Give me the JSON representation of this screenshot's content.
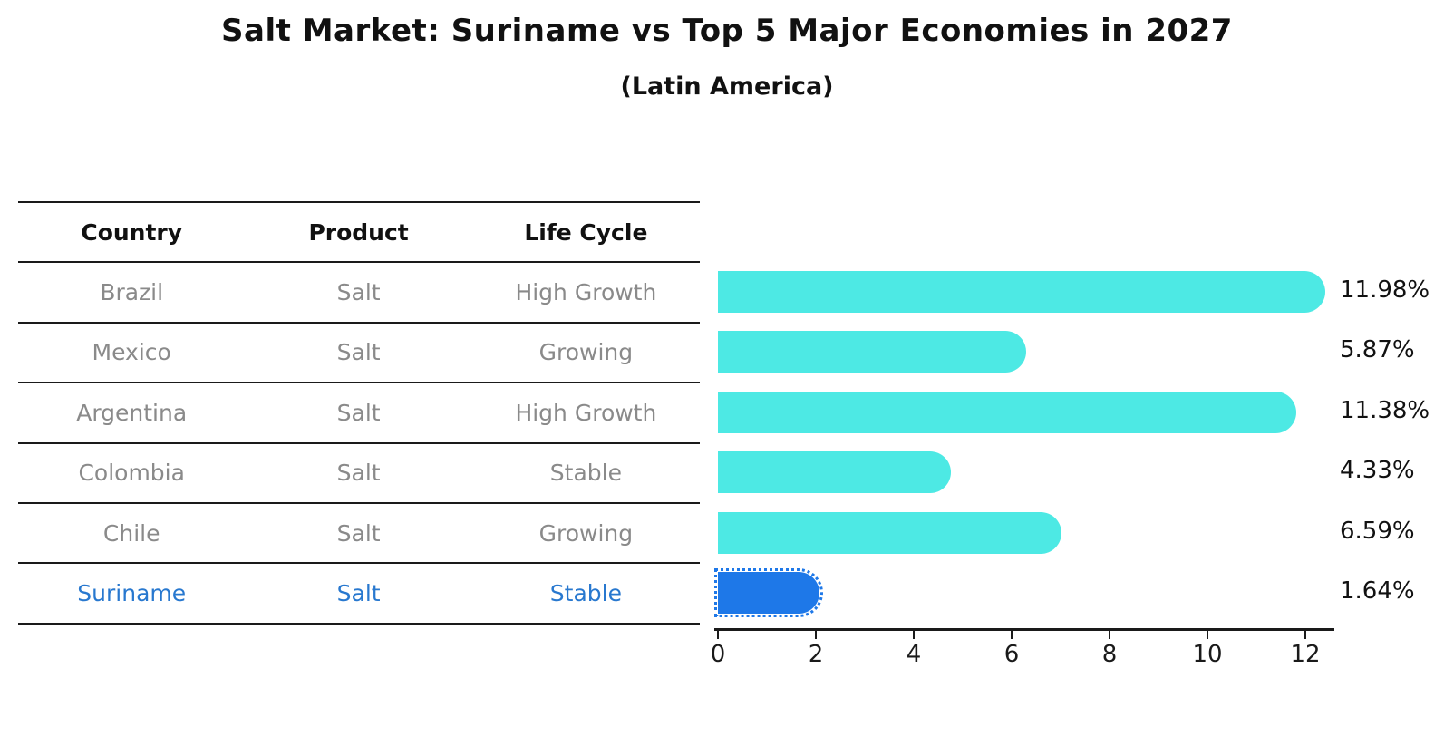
{
  "title": "Salt Market: Suriname vs Top 5 Major Economies in 2027",
  "subtitle": "(Latin America)",
  "table": {
    "headers": [
      "Country",
      "Product",
      "Life Cycle"
    ],
    "rows": [
      {
        "country": "Brazil",
        "product": "Salt",
        "life_cycle": "High Growth",
        "highlight": false
      },
      {
        "country": "Mexico",
        "product": "Salt",
        "life_cycle": "Growing",
        "highlight": false
      },
      {
        "country": "Argentina",
        "product": "Salt",
        "life_cycle": "High Growth",
        "highlight": false
      },
      {
        "country": "Colombia",
        "product": "Salt",
        "life_cycle": "Stable",
        "highlight": false
      },
      {
        "country": "Chile",
        "product": "Salt",
        "life_cycle": "Growing",
        "highlight": false
      },
      {
        "country": "Suriname",
        "product": "Salt",
        "life_cycle": "Stable",
        "highlight": true
      }
    ]
  },
  "chart_data": {
    "type": "bar",
    "orientation": "horizontal",
    "title": "Salt Market: Suriname vs Top 5 Major Economies in 2027",
    "subtitle": "(Latin America)",
    "categories": [
      "Brazil",
      "Mexico",
      "Argentina",
      "Colombia",
      "Chile",
      "Suriname"
    ],
    "values": [
      11.98,
      5.87,
      11.38,
      4.33,
      6.59,
      1.64
    ],
    "value_labels": [
      "11.98%",
      "5.87%",
      "11.38%",
      "4.33%",
      "6.59%",
      "1.64%"
    ],
    "x_ticks": [
      0,
      2,
      4,
      6,
      8,
      10,
      12
    ],
    "xlim": [
      0,
      12.6
    ],
    "grid": false,
    "legend": "none",
    "bar_color": "#4de9e4",
    "highlight_index": 5,
    "highlight_bar_color": "#1e78e8",
    "highlight_edge_style": "dotted"
  },
  "colors": {
    "bar": "#4de9e4",
    "highlight_bar": "#1e78e8",
    "highlight_text": "#2878cf",
    "body_text": "#8a8a8a",
    "header_text": "#111111",
    "axis": "#1a1a1a"
  }
}
